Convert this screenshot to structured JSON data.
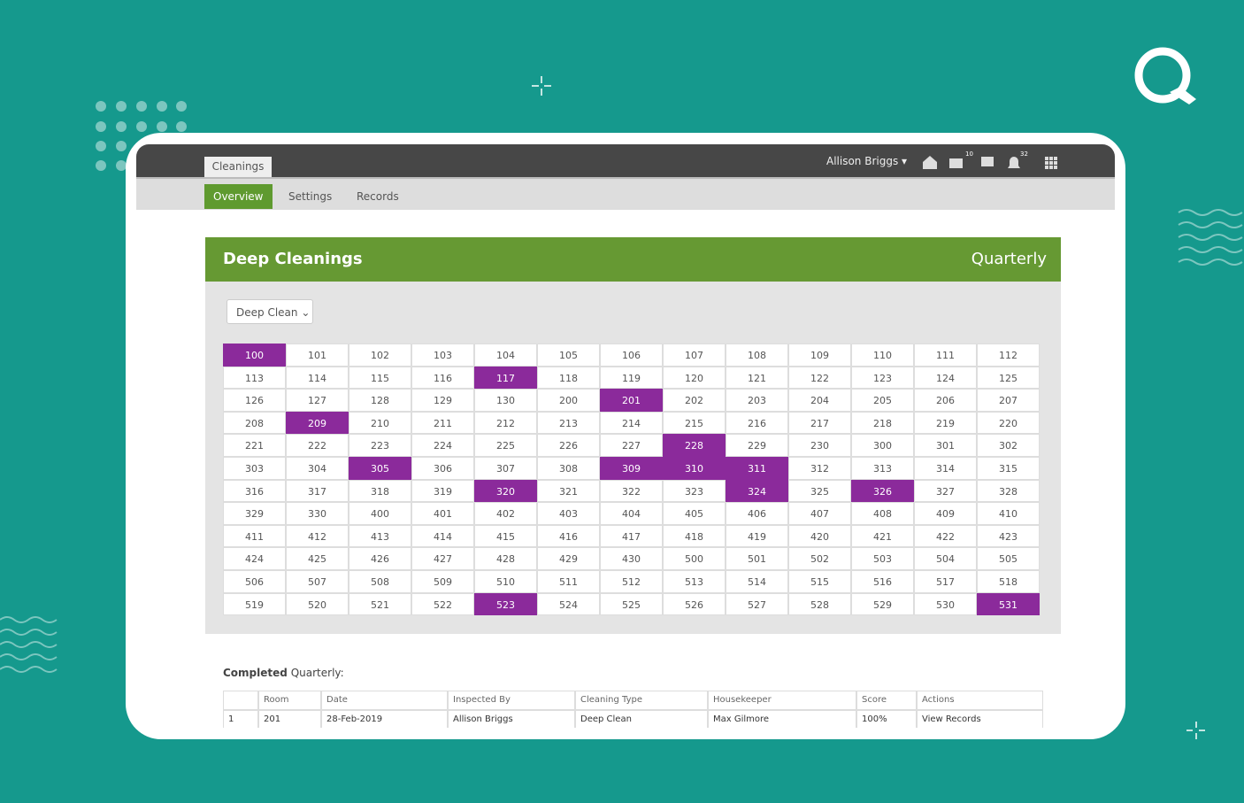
{
  "app_header": {
    "module_tab": "Cleanings",
    "user": "Allison Briggs",
    "mail_badge": "10",
    "bell_badge": "32"
  },
  "sub_nav": {
    "items": [
      "Overview",
      "Settings",
      "Records"
    ],
    "active": 0
  },
  "panel": {
    "title": "Deep Cleanings",
    "period": "Quarterly",
    "dropdown": "Deep Clean"
  },
  "grid": {
    "rows": [
      [
        100,
        101,
        102,
        103,
        104,
        105,
        106,
        107,
        108,
        109,
        110,
        111,
        112
      ],
      [
        113,
        114,
        115,
        116,
        117,
        118,
        119,
        120,
        121,
        122,
        123,
        124,
        125
      ],
      [
        126,
        127,
        128,
        129,
        130,
        200,
        201,
        202,
        203,
        204,
        205,
        206,
        207
      ],
      [
        208,
        209,
        210,
        211,
        212,
        213,
        214,
        215,
        216,
        217,
        218,
        219,
        220
      ],
      [
        221,
        222,
        223,
        224,
        225,
        226,
        227,
        228,
        229,
        230,
        300,
        301,
        302
      ],
      [
        303,
        304,
        305,
        306,
        307,
        308,
        309,
        310,
        311,
        312,
        313,
        314,
        315
      ],
      [
        316,
        317,
        318,
        319,
        320,
        321,
        322,
        323,
        324,
        325,
        326,
        327,
        328
      ],
      [
        329,
        330,
        400,
        401,
        402,
        403,
        404,
        405,
        406,
        407,
        408,
        409,
        410
      ],
      [
        411,
        412,
        413,
        414,
        415,
        416,
        417,
        418,
        419,
        420,
        421,
        422,
        423
      ],
      [
        424,
        425,
        426,
        427,
        428,
        429,
        430,
        500,
        501,
        502,
        503,
        504,
        505
      ],
      [
        506,
        507,
        508,
        509,
        510,
        511,
        512,
        513,
        514,
        515,
        516,
        517,
        518
      ],
      [
        519,
        520,
        521,
        522,
        523,
        524,
        525,
        526,
        527,
        528,
        529,
        530,
        531
      ]
    ],
    "cleaned": [
      100,
      117,
      201,
      209,
      228,
      305,
      309,
      310,
      311,
      320,
      324,
      326,
      523,
      531
    ],
    "cleaned_color": "#8b2a9b"
  },
  "table": {
    "heading_bold": "Completed",
    "heading_rest": "Quarterly:",
    "columns": [
      "Room",
      "Date",
      "Inspected By",
      "Cleaning Type",
      "Housekeeper",
      "Score",
      "Actions"
    ],
    "rows": [
      [
        1,
        201,
        "28-Feb-2019",
        "Allison Briggs",
        "Deep Clean",
        "Max Gilmore",
        "100%",
        "View Records"
      ]
    ]
  }
}
